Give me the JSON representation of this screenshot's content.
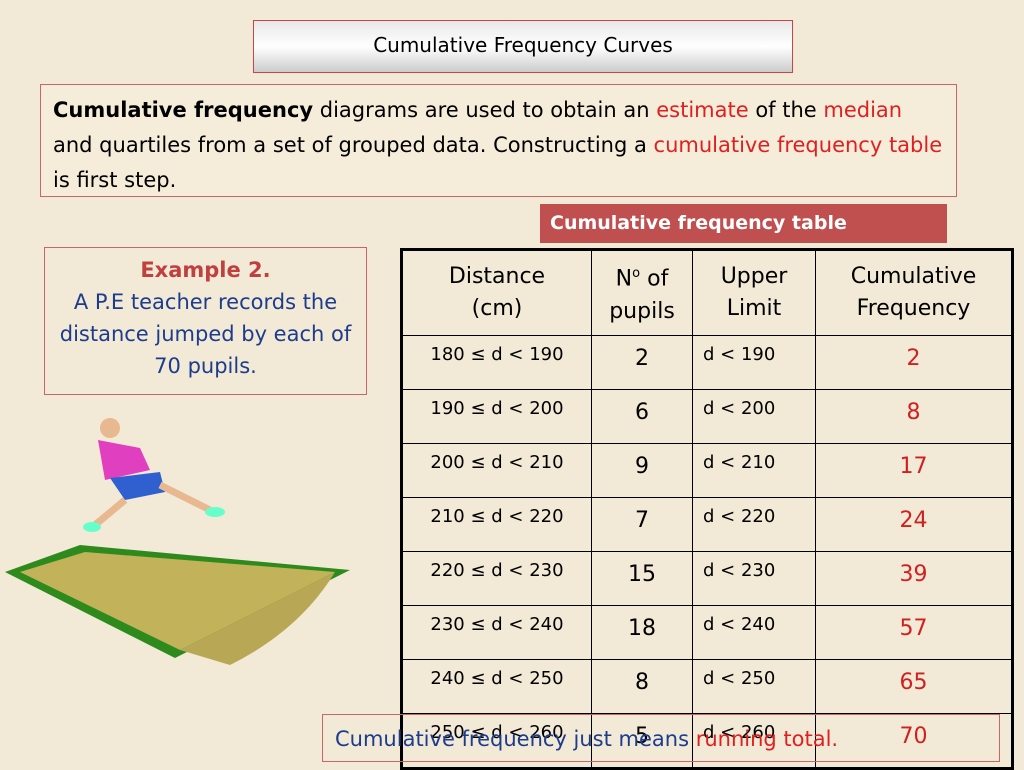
{
  "title": "Cumulative Frequency Curves",
  "intro": [
    "Cumulative frequency",
    " diagrams are used to obtain an ",
    "estimate",
    " of the ",
    "median",
    " and quartiles from a set of grouped data. Constructing a ",
    "cumulative frequency table",
    " is first step."
  ],
  "table_label": "Cumulative frequency table",
  "example": {
    "heading": "Example 2.",
    "text": "A P.E teacher records the distance jumped by each of 70 pupils."
  },
  "table": {
    "header": [
      [
        "Distance",
        "(cm)"
      ],
      [
        "N",
        "o",
        " of",
        "pupils"
      ],
      [
        "Upper",
        "Limit"
      ],
      [
        "Cumulative",
        "Frequency"
      ]
    ],
    "rows": [
      [
        "180 ≤ d  < 190",
        2,
        "d  < 190",
        2
      ],
      [
        "190 ≤ d  < 200",
        6,
        "d  < 200",
        8
      ],
      [
        "200 ≤ d  < 210",
        9,
        "d  < 210",
        17
      ],
      [
        "210 ≤ d  < 220",
        7,
        "d  < 220",
        24
      ],
      [
        "220 ≤ d  < 230",
        15,
        "d  < 230",
        39
      ],
      [
        "230 ≤ d  < 240",
        18,
        "d  < 240",
        57
      ],
      [
        "240 ≤ d  < 250",
        8,
        "d  < 250",
        65
      ],
      [
        "250 ≤ d  < 260",
        5,
        "d  < 260",
        70
      ]
    ]
  },
  "footer": [
    "Cumulative frequency just means ",
    "running total."
  ]
}
